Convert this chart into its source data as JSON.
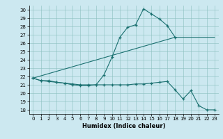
{
  "xlabel": "Humidex (Indice chaleur)",
  "bg_color": "#cce8f0",
  "line_color": "#1a7070",
  "xlim": [
    -0.5,
    23.5
  ],
  "ylim": [
    17.5,
    30.5
  ],
  "xticks": [
    0,
    1,
    2,
    3,
    4,
    5,
    6,
    7,
    8,
    9,
    10,
    11,
    12,
    13,
    14,
    15,
    16,
    17,
    18,
    19,
    20,
    21,
    22,
    23
  ],
  "yticks": [
    18,
    19,
    20,
    21,
    22,
    23,
    24,
    25,
    26,
    27,
    28,
    29,
    30
  ],
  "line1_x": [
    0,
    1,
    2,
    3,
    4,
    5,
    6,
    7,
    8,
    9,
    10,
    11,
    12,
    13,
    14,
    15,
    16,
    17,
    18
  ],
  "line1_y": [
    21.8,
    21.5,
    21.5,
    21.3,
    21.2,
    21.1,
    21.0,
    21.0,
    21.0,
    22.2,
    24.3,
    26.7,
    27.9,
    28.2,
    30.1,
    29.5,
    28.9,
    28.1,
    26.7
  ],
  "line2_x": [
    0,
    1,
    2,
    3,
    4,
    5,
    6,
    7,
    8,
    9,
    10,
    11,
    12,
    13,
    14,
    15,
    16,
    17,
    18,
    19,
    20,
    21,
    22,
    23
  ],
  "line2_y": [
    21.8,
    21.5,
    21.4,
    21.3,
    21.2,
    21.0,
    20.9,
    20.9,
    21.0,
    21.0,
    21.0,
    21.0,
    21.0,
    21.1,
    21.1,
    21.2,
    21.3,
    21.4,
    20.4,
    19.3,
    20.3,
    18.5,
    18.0,
    18.0
  ],
  "line3_x": [
    0,
    18,
    23
  ],
  "line3_y": [
    21.8,
    26.7,
    26.7
  ]
}
